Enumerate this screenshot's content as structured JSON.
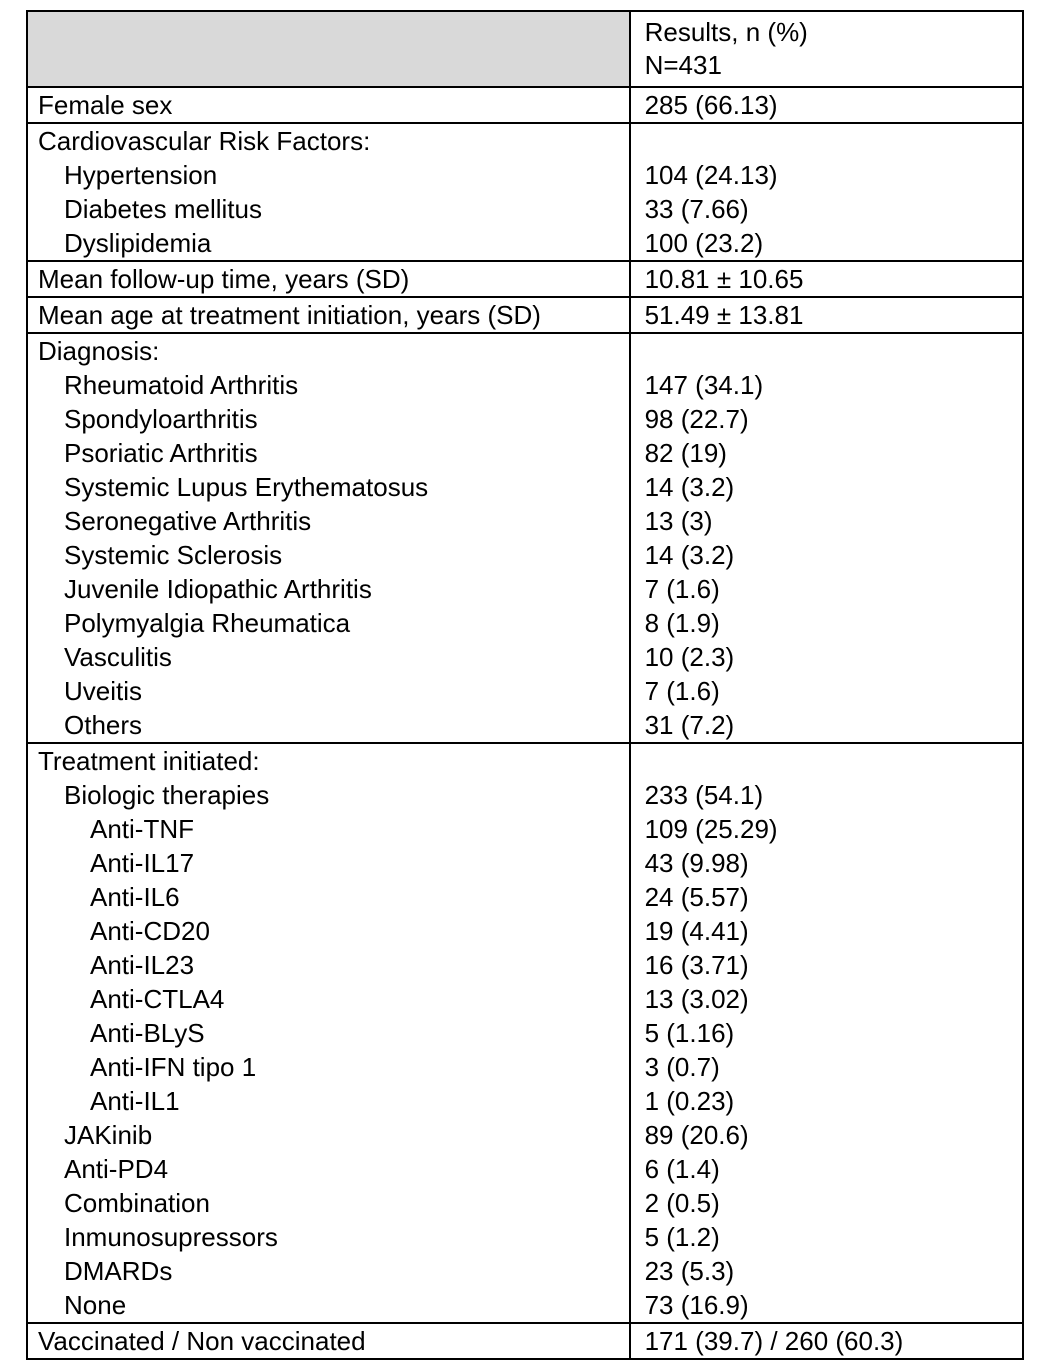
{
  "page": {
    "background": "#ffffff",
    "border_color": "#000000",
    "header_fill": "#d9d9d9"
  },
  "table": {
    "header": {
      "label": "",
      "value_line1": "Results, n (%)",
      "value_line2": "N=431"
    },
    "sections": [
      {
        "name": "female-sex",
        "rows": [
          {
            "label": "Female sex",
            "value": "285 (66.13)",
            "indent": 0
          }
        ]
      },
      {
        "name": "cardiovascular-risk-factors",
        "rows": [
          {
            "label": "Cardiovascular Risk Factors:",
            "value": "",
            "indent": 0
          },
          {
            "label": "Hypertension",
            "value": "104 (24.13)",
            "indent": 1
          },
          {
            "label": "Diabetes mellitus",
            "value": "33 (7.66)",
            "indent": 1
          },
          {
            "label": "Dyslipidemia",
            "value": "100 (23.2)",
            "indent": 1
          }
        ]
      },
      {
        "name": "mean-follow-up-time",
        "rows": [
          {
            "label": "Mean follow-up time, years (SD)",
            "value": "10.81 ± 10.65",
            "indent": 0
          }
        ]
      },
      {
        "name": "mean-age-at-treatment-initiation",
        "rows": [
          {
            "label": "Mean age at treatment initiation, years (SD)",
            "value": "51.49 ± 13.81",
            "indent": 0
          }
        ]
      },
      {
        "name": "diagnosis",
        "rows": [
          {
            "label": "Diagnosis:",
            "value": "",
            "indent": 0
          },
          {
            "label": "Rheumatoid Arthritis",
            "value": "147 (34.1)",
            "indent": 1
          },
          {
            "label": "Spondyloarthritis",
            "value": "98 (22.7)",
            "indent": 1
          },
          {
            "label": "Psoriatic Arthritis",
            "value": "82 (19)",
            "indent": 1
          },
          {
            "label": "Systemic Lupus Erythematosus",
            "value": "14 (3.2)",
            "indent": 1
          },
          {
            "label": "Seronegative Arthritis",
            "value": "13 (3)",
            "indent": 1
          },
          {
            "label": "Systemic Sclerosis",
            "value": "14 (3.2)",
            "indent": 1
          },
          {
            "label": "Juvenile Idiopathic Arthritis",
            "value": "7 (1.6)",
            "indent": 1
          },
          {
            "label": "Polymyalgia Rheumatica",
            "value": "8 (1.9)",
            "indent": 1
          },
          {
            "label": "Vasculitis",
            "value": "10 (2.3)",
            "indent": 1
          },
          {
            "label": "Uveitis",
            "value": "7 (1.6)",
            "indent": 1
          },
          {
            "label": "Others",
            "value": "31 (7.2)",
            "indent": 1
          }
        ]
      },
      {
        "name": "treatment-initiated",
        "rows": [
          {
            "label": "Treatment initiated:",
            "value": "",
            "indent": 0
          },
          {
            "label": "Biologic therapies",
            "value": "233 (54.1)",
            "indent": 1
          },
          {
            "label": "Anti-TNF",
            "value": "109 (25.29)",
            "indent": 2
          },
          {
            "label": "Anti-IL17",
            "value": "43 (9.98)",
            "indent": 2
          },
          {
            "label": "Anti-IL6",
            "value": "24 (5.57)",
            "indent": 2
          },
          {
            "label": "Anti-CD20",
            "value": "19 (4.41)",
            "indent": 2
          },
          {
            "label": "Anti-IL23",
            "value": "16 (3.71)",
            "indent": 2
          },
          {
            "label": "Anti-CTLA4",
            "value": "13 (3.02)",
            "indent": 2
          },
          {
            "label": "Anti-BLyS",
            "value": "5 (1.16)",
            "indent": 2
          },
          {
            "label": "Anti-IFN tipo 1",
            "value": "3 (0.7)",
            "indent": 2
          },
          {
            "label": "Anti-IL1",
            "value": "1 (0.23)",
            "indent": 2
          },
          {
            "label": "JAKinib",
            "value": "89 (20.6)",
            "indent": 1
          },
          {
            "label": "Anti-PD4",
            "value": "6 (1.4)",
            "indent": 1
          },
          {
            "label": "Combination",
            "value": "2 (0.5)",
            "indent": 1
          },
          {
            "label": "Inmunosupressors",
            "value": "5 (1.2)",
            "indent": 1
          },
          {
            "label": "DMARDs",
            "value": "23 (5.3)",
            "indent": 1
          },
          {
            "label": "None",
            "value": "73 (16.9)",
            "indent": 1
          }
        ]
      },
      {
        "name": "vaccinated",
        "rows": [
          {
            "label": "Vaccinated / Non vaccinated",
            "value": "171 (39.7) / 260 (60.3)",
            "indent": 0
          }
        ]
      }
    ]
  }
}
